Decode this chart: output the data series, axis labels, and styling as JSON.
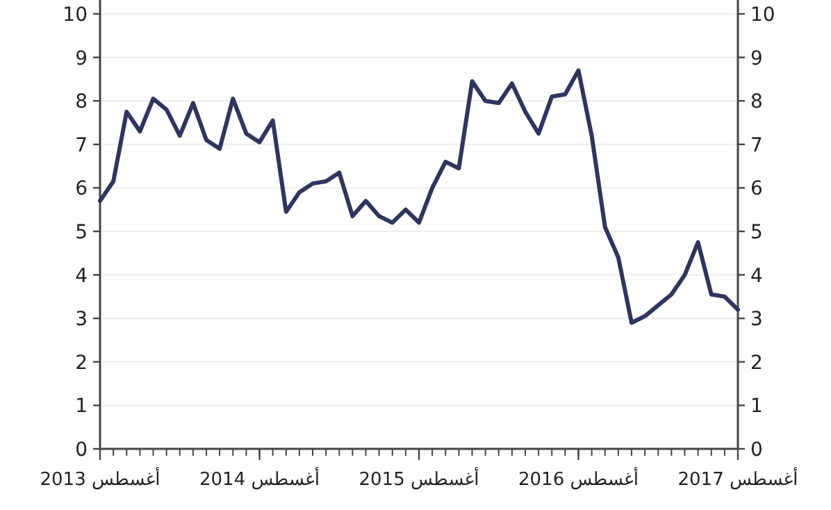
{
  "chart_data": {
    "type": "line",
    "x": [
      "2013-08",
      "2013-09",
      "2013-10",
      "2013-11",
      "2013-12",
      "2014-01",
      "2014-02",
      "2014-03",
      "2014-04",
      "2014-05",
      "2014-06",
      "2014-07",
      "2014-08",
      "2014-09",
      "2014-10",
      "2014-11",
      "2014-12",
      "2015-01",
      "2015-02",
      "2015-03",
      "2015-04",
      "2015-05",
      "2015-06",
      "2015-07",
      "2015-08",
      "2015-09",
      "2015-10",
      "2015-11",
      "2015-12",
      "2016-01",
      "2016-02",
      "2016-03",
      "2016-04",
      "2016-05",
      "2016-06",
      "2016-07",
      "2016-08",
      "2016-09",
      "2016-10",
      "2016-11",
      "2016-12",
      "2017-01",
      "2017-02",
      "2017-03",
      "2017-04",
      "2017-05",
      "2017-06",
      "2017-07",
      "2017-08"
    ],
    "series": [
      {
        "color": "#2f355e",
        "values": [
          5.7,
          6.15,
          7.75,
          7.3,
          8.05,
          7.8,
          7.2,
          7.95,
          7.1,
          6.9,
          8.05,
          7.25,
          7.05,
          7.55,
          5.45,
          5.9,
          6.1,
          6.15,
          6.35,
          5.35,
          5.7,
          5.35,
          5.2,
          5.5,
          5.2,
          6.0,
          6.6,
          6.45,
          8.45,
          8.0,
          7.95,
          8.4,
          7.75,
          7.25,
          8.1,
          8.15,
          8.7,
          7.2,
          5.1,
          4.4,
          2.9,
          3.05,
          3.3,
          3.55,
          4.0,
          4.75,
          3.55,
          3.5,
          3.2
        ]
      }
    ],
    "xlim": [
      "2013-08",
      "2017-08"
    ],
    "xticks": [
      {
        "value": "2013-08",
        "label": "أغسطس 2013"
      },
      {
        "value": "2014-08",
        "label": "أغسطس 2014"
      },
      {
        "value": "2015-08",
        "label": "أغسطس 2015"
      },
      {
        "value": "2016-08",
        "label": "أغسطس 2016"
      },
      {
        "value": "2017-08",
        "label": "أغسطس 2017"
      }
    ],
    "ylim": [
      0,
      10
    ],
    "yticks": [
      0,
      1,
      2,
      3,
      4,
      5,
      6,
      7,
      8,
      9,
      10
    ],
    "y2lim": [
      0,
      10
    ],
    "y2ticks": [
      0,
      1,
      2,
      3,
      4,
      5,
      6,
      7,
      8,
      9,
      10
    ],
    "grid": "y",
    "line_style": "solid"
  }
}
